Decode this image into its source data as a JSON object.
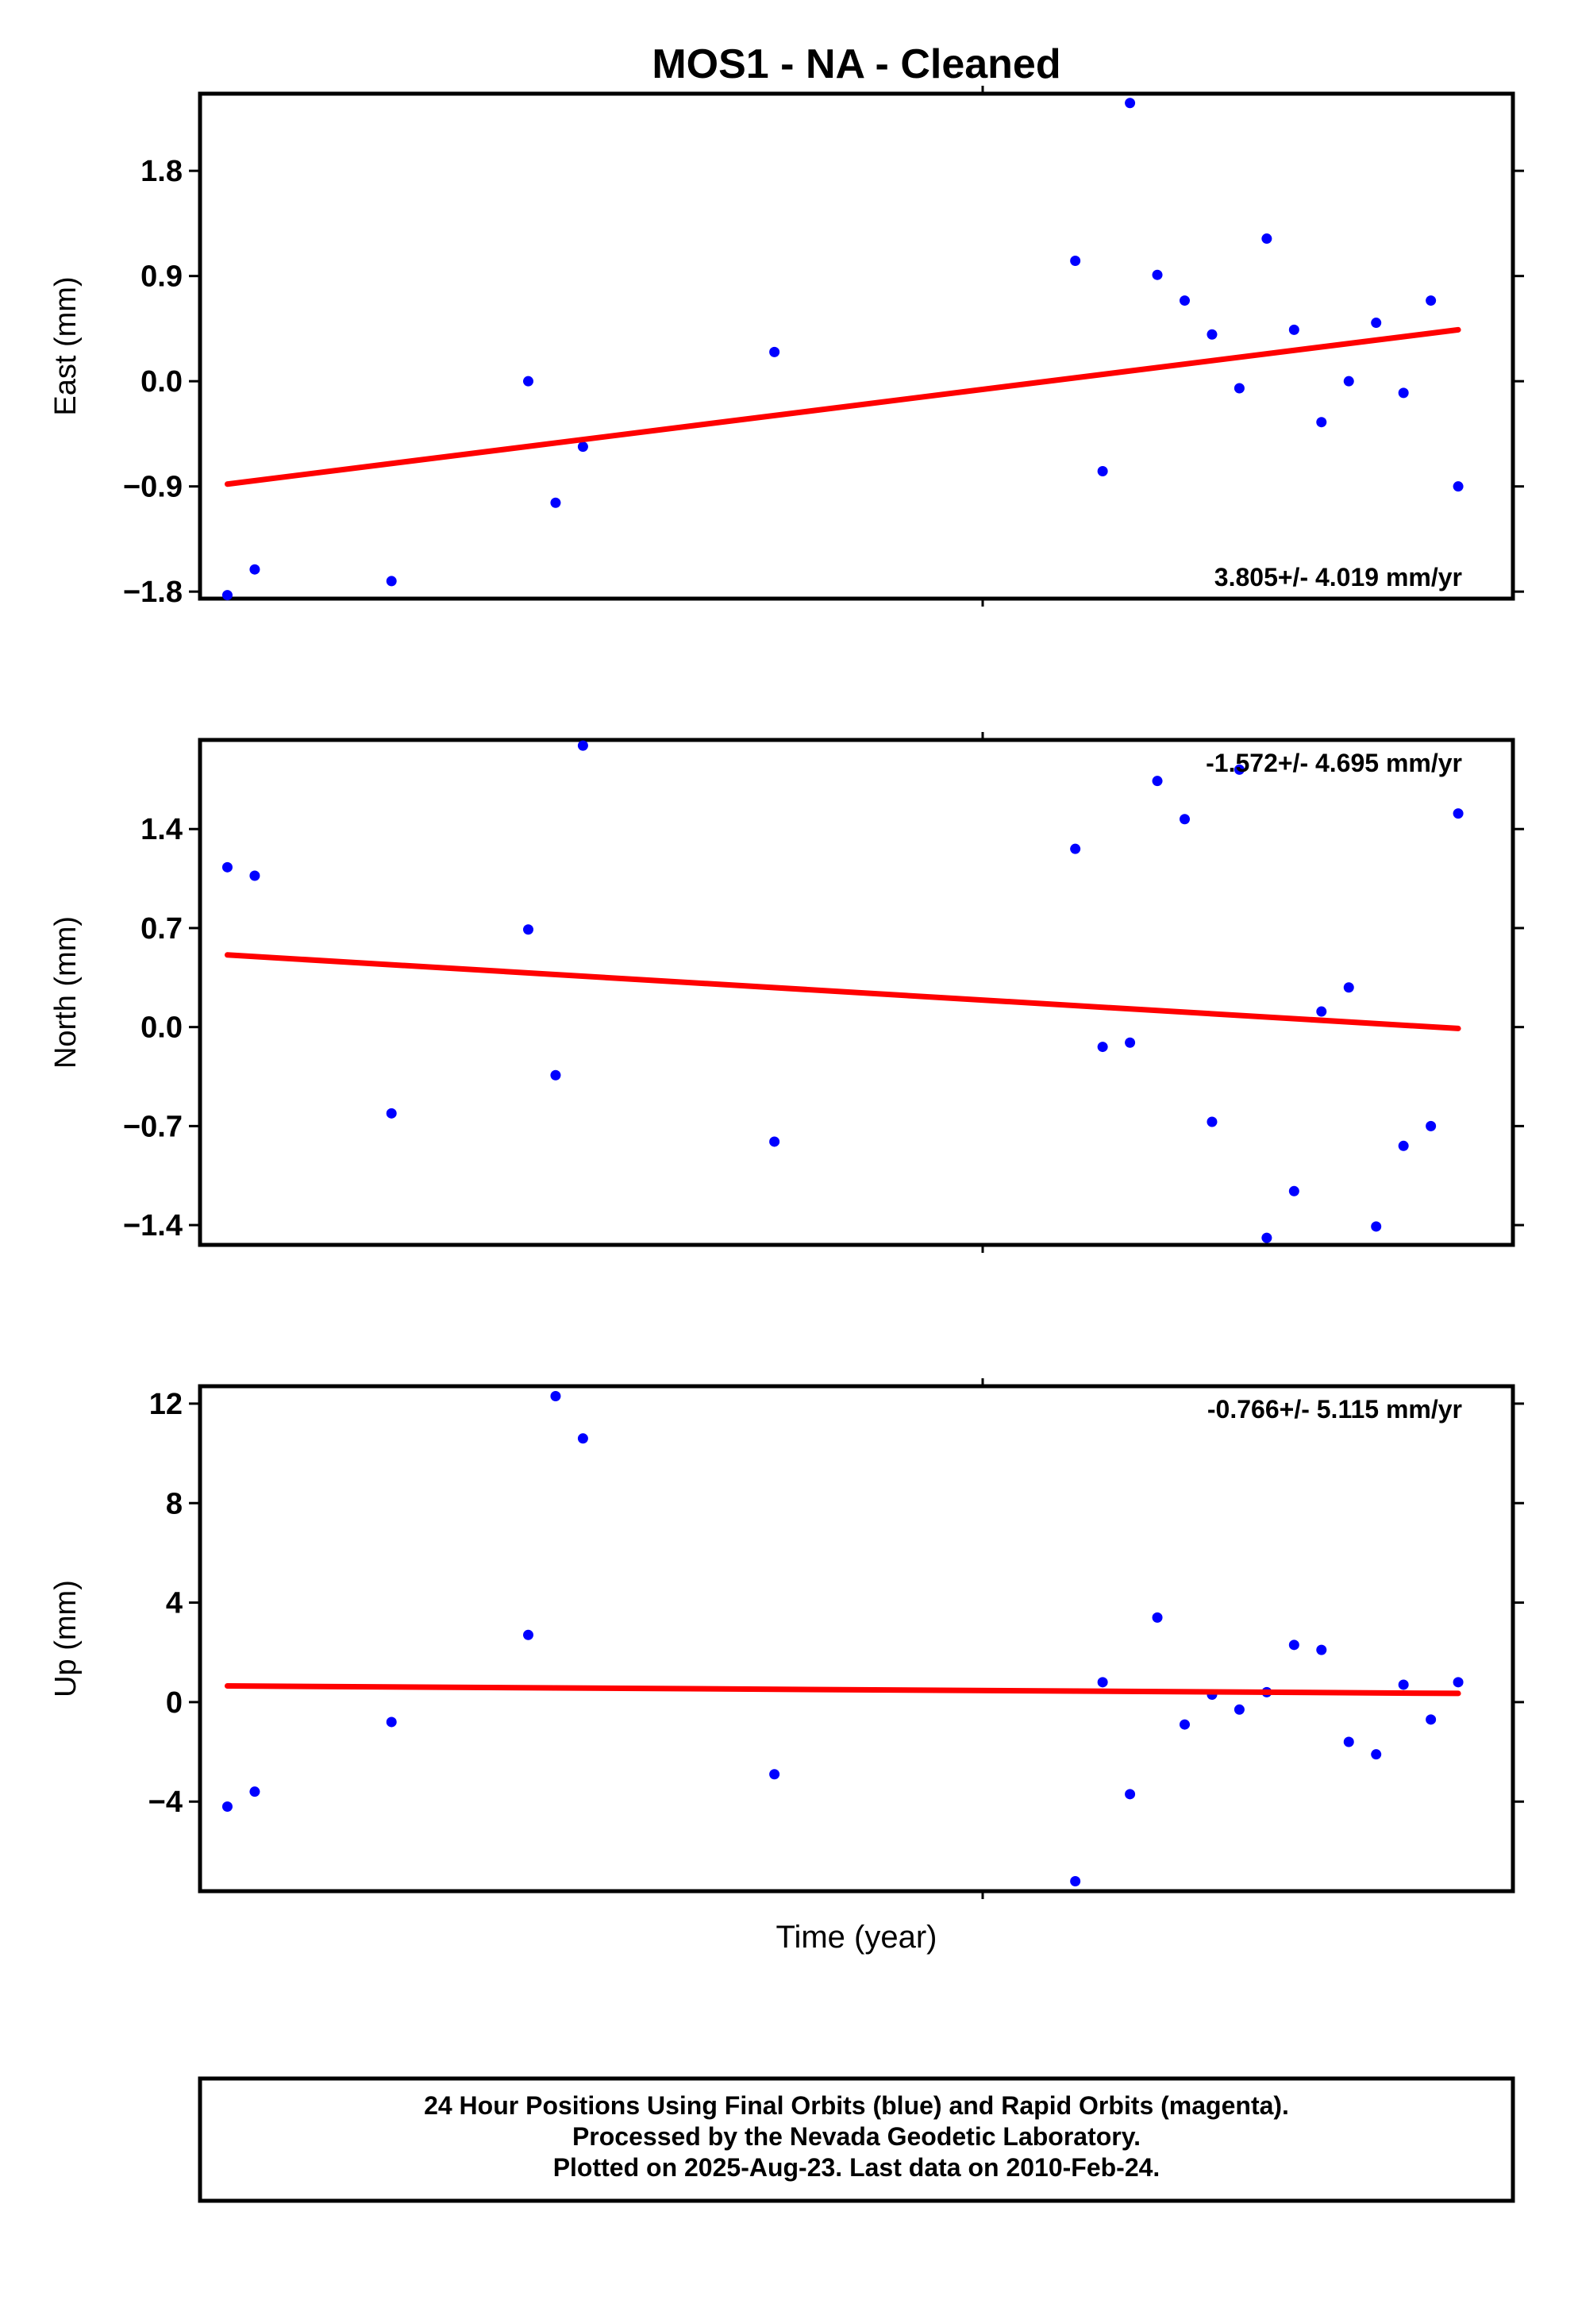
{
  "figure": {
    "title": "MOS1  - NA - Cleaned",
    "xlabel": "Time (year)",
    "footer": [
      "24 Hour Positions Using Final Orbits (blue) and Rapid Orbits (magenta).",
      "Processed by the Nevada Geodetic Laboratory.",
      "Plotted on 2025-Aug-23. Last data on 2010-Feb-24."
    ]
  },
  "colors": {
    "final_orbits": "#0000ff",
    "trend": "#ff0000",
    "frame": "#000000"
  },
  "chart_data": [
    {
      "type": "scatter",
      "ylabel": "East (mm)",
      "ylim": [
        -1.86,
        2.46
      ],
      "yticks": [
        1.8,
        0.9,
        0.0,
        -0.9,
        -1.8
      ],
      "ytick_labels": [
        "1.8",
        "0.9",
        "0.0",
        "−0.9",
        "−1.8"
      ],
      "rate_label": "3.805+/- 4.019 mm/yr",
      "rate_position": "bottom-right",
      "series": [
        {
          "color": "#0000ff",
          "x": [
            1,
            2,
            7,
            12,
            13,
            14,
            21,
            32,
            33,
            34,
            35,
            36,
            37,
            38,
            39,
            40,
            41,
            42,
            43,
            44,
            45,
            46
          ],
          "y": [
            -1.83,
            -1.61,
            -1.71,
            0.0,
            -1.04,
            -0.56,
            0.25,
            1.03,
            -0.77,
            2.38,
            0.91,
            0.69,
            0.4,
            -0.06,
            1.22,
            0.44,
            -0.35,
            0.0,
            0.5,
            -0.1,
            0.69,
            -0.9
          ]
        },
        {
          "type": "line",
          "color": "#ff0000",
          "x": [
            1,
            46
          ],
          "y": [
            -0.88,
            0.44
          ]
        }
      ]
    },
    {
      "type": "scatter",
      "ylabel": "North (mm)",
      "ylim": [
        -1.54,
        2.03
      ],
      "yticks": [
        1.4,
        0.7,
        0.0,
        -0.7,
        -1.4
      ],
      "ytick_labels": [
        "1.4",
        "0.7",
        "0.0",
        "−0.7",
        "−1.4"
      ],
      "rate_label": "-1.572+/- 4.695 mm/yr",
      "rate_position": "top-right",
      "series": [
        {
          "color": "#0000ff",
          "x": [
            1,
            2,
            7,
            12,
            13,
            14,
            21,
            32,
            33,
            34,
            35,
            36,
            37,
            38,
            39,
            40,
            41,
            42,
            43,
            44,
            45,
            46
          ],
          "y": [
            1.13,
            1.07,
            -0.61,
            0.69,
            -0.34,
            1.99,
            -0.81,
            1.26,
            -0.14,
            -0.11,
            1.74,
            1.47,
            -0.67,
            1.82,
            -1.49,
            -1.16,
            0.11,
            0.28,
            -1.41,
            -0.84,
            -0.7,
            1.51
          ]
        },
        {
          "type": "line",
          "color": "#ff0000",
          "x": [
            1,
            46
          ],
          "y": [
            0.51,
            -0.01
          ]
        }
      ]
    },
    {
      "type": "scatter",
      "ylabel": "Up (mm)",
      "ylim": [
        -7.6,
        12.7
      ],
      "yticks": [
        12,
        8,
        4,
        0,
        -4
      ],
      "ytick_labels": [
        "12",
        "8",
        "4",
        "0",
        "−4"
      ],
      "rate_label": "-0.766+/- 5.115 mm/yr",
      "rate_position": "top-right",
      "series": [
        {
          "color": "#0000ff",
          "x": [
            1,
            2,
            7,
            12,
            13,
            14,
            21,
            32,
            33,
            34,
            35,
            36,
            37,
            38,
            39,
            40,
            41,
            42,
            43,
            44,
            45,
            46
          ],
          "y": [
            -4.2,
            -3.6,
            -0.8,
            2.7,
            12.3,
            10.6,
            -2.9,
            -7.2,
            0.8,
            -3.7,
            3.4,
            -0.9,
            0.3,
            -0.3,
            0.4,
            2.3,
            2.1,
            -1.6,
            -2.1,
            0.7,
            -0.7,
            0.8
          ]
        },
        {
          "type": "line",
          "color": "#ff0000",
          "x": [
            1,
            46
          ],
          "y": [
            0.65,
            0.35
          ]
        }
      ]
    }
  ]
}
